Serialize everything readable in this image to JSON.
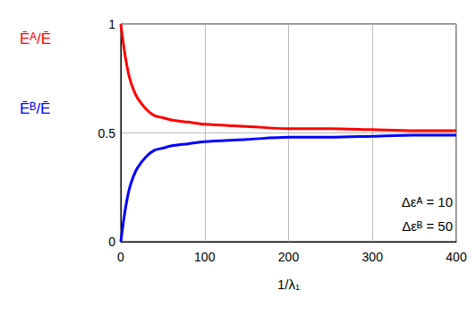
{
  "chart_data": {
    "type": "line",
    "x_label": "1/λ₁",
    "x": [
      0,
      5,
      10,
      15,
      20,
      30,
      40,
      50,
      60,
      80,
      100,
      150,
      200,
      250,
      300,
      350,
      400
    ],
    "series": [
      {
        "name": "Ēᴬ/Ē",
        "color": "#ff0000",
        "values": [
          1,
          0.86,
          0.76,
          0.7,
          0.66,
          0.61,
          0.58,
          0.57,
          0.56,
          0.55,
          0.54,
          0.53,
          0.52,
          0.52,
          0.515,
          0.51,
          0.51
        ]
      },
      {
        "name": "Ēᴮ/Ē",
        "color": "#0000ff",
        "values": [
          0,
          0.14,
          0.24,
          0.3,
          0.34,
          0.39,
          0.42,
          0.43,
          0.44,
          0.45,
          0.46,
          0.47,
          0.48,
          0.48,
          0.485,
          0.49,
          0.49
        ]
      }
    ],
    "xlim": [
      0,
      400
    ],
    "xticks": [
      0,
      100,
      200,
      300,
      400
    ],
    "ylim": [
      0,
      1
    ],
    "yticks": [
      0,
      0.5,
      1
    ],
    "grid": true,
    "annotations": [
      "Δεᴬ = 10",
      "Δεᴮ = 50"
    ]
  }
}
